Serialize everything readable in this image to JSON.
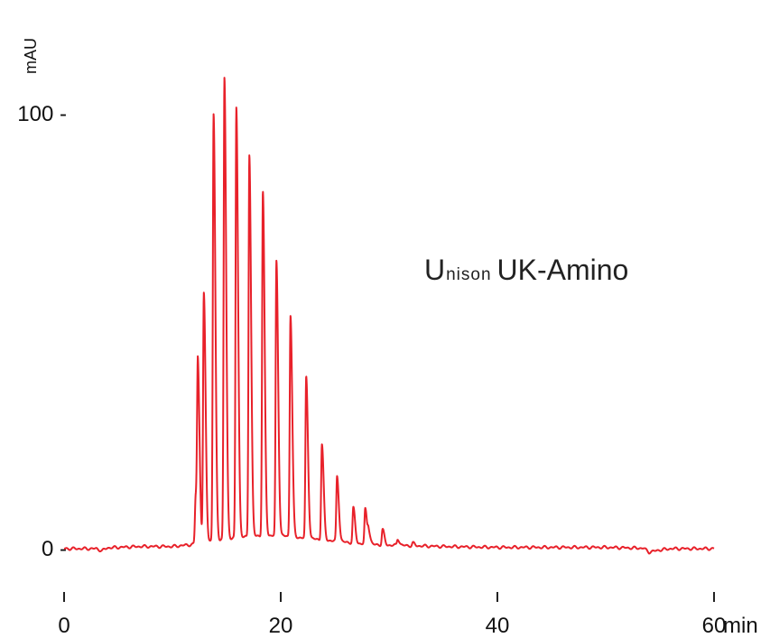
{
  "chart_data": {
    "type": "line",
    "title": "",
    "xlabel": "",
    "ylabel": "mAU",
    "x_unit": "min",
    "xlim": [
      0,
      60
    ],
    "ylim": [
      -5,
      123
    ],
    "x_ticks": [
      {
        "value": 0,
        "label": "0"
      },
      {
        "value": 20,
        "label": "20"
      },
      {
        "value": 40,
        "label": "40"
      },
      {
        "value": 60,
        "label": "60"
      }
    ],
    "y_ticks": [
      {
        "value": 0,
        "label": "0 -"
      },
      {
        "value": 100,
        "label": "100 -"
      }
    ],
    "grid": false,
    "color": "#e8212a",
    "series": [
      {
        "baseline": [
          [
            0,
            0
          ],
          [
            3,
            0
          ],
          [
            3.5,
            -0.5
          ],
          [
            4,
            0.2
          ],
          [
            7,
            0.5
          ],
          [
            10,
            0.5
          ],
          [
            12,
            1
          ],
          [
            14,
            2
          ],
          [
            16,
            2.5
          ],
          [
            18,
            3
          ],
          [
            20,
            3
          ],
          [
            22,
            2.5
          ],
          [
            24,
            2
          ],
          [
            26,
            1.5
          ],
          [
            28,
            1
          ],
          [
            30,
            0.8
          ],
          [
            35,
            0.5
          ],
          [
            40,
            0.3
          ],
          [
            45,
            0.3
          ],
          [
            50,
            0.3
          ],
          [
            53.5,
            0.1
          ],
          [
            54,
            -0.8
          ],
          [
            55,
            -0.3
          ],
          [
            56,
            0
          ],
          [
            60,
            0
          ]
        ],
        "peaks": [
          {
            "x": 12.15,
            "y": 11
          },
          {
            "x": 12.35,
            "y": 38
          },
          {
            "x": 12.9,
            "y": 57
          },
          {
            "x": 13.8,
            "y": 98
          },
          {
            "x": 14.8,
            "y": 106
          },
          {
            "x": 15.9,
            "y": 99
          },
          {
            "x": 17.1,
            "y": 88
          },
          {
            "x": 18.35,
            "y": 79
          },
          {
            "x": 19.6,
            "y": 63
          },
          {
            "x": 20.9,
            "y": 51
          },
          {
            "x": 22.35,
            "y": 37
          },
          {
            "x": 23.8,
            "y": 22
          },
          {
            "x": 25.2,
            "y": 15
          },
          {
            "x": 26.7,
            "y": 8
          },
          {
            "x": 27.8,
            "y": 8
          },
          {
            "x": 28.1,
            "y": 3
          },
          {
            "x": 29.4,
            "y": 3.5
          },
          {
            "x": 30.8,
            "y": 1.5
          },
          {
            "x": 32.2,
            "y": 0.6
          }
        ]
      }
    ]
  },
  "legend_text": {
    "brand_prefix_initial": "U",
    "brand_prefix_rest": "nison",
    "brand_name": "UK-Amino"
  }
}
